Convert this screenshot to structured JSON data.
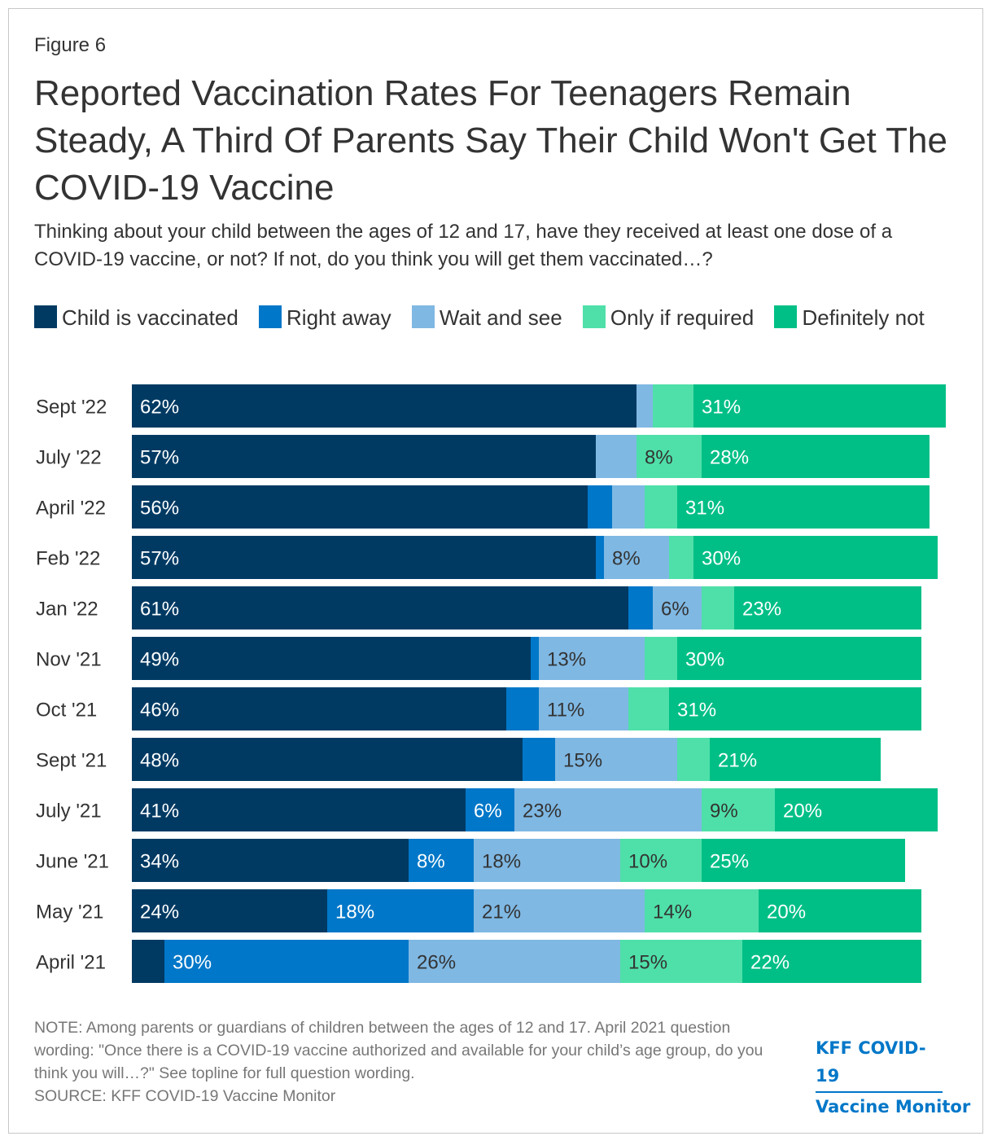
{
  "figure_label": "Figure 6",
  "title": "Reported Vaccination Rates For Teenagers Remain Steady, A Third Of Parents Say Their Child Won't Get The COVID-19 Vaccine",
  "subtitle": "Thinking about your child between the ages of 12 and 17, have they received at least one dose of a COVID-19 vaccine, or not? If not, do you think you will get them vaccinated…?",
  "note": "NOTE: Among parents or guardians of children between the ages of 12 and 17. April 2021 question wording: \"Once there is a COVID-19 vaccine authorized and available for your child’s age group, do you think you will…?\" See topline for full question wording.",
  "source": "SOURCE: KFF COVID-19 Vaccine Monitor",
  "logo": {
    "line1": "KFF COVID-19",
    "line2": "Vaccine Monitor"
  },
  "colors": {
    "vaccinated": "#003a63",
    "right_away": "#0077c8",
    "wait_and_see": "#7fb8e3",
    "only_if_required": "#4fe0a9",
    "definitely_not": "#00bf86",
    "border": "#c8c8c8",
    "logo": "#0077c8"
  },
  "legend": [
    {
      "label": "Child is vaccinated",
      "color": "#003a63"
    },
    {
      "label": "Right away",
      "color": "#0077c8"
    },
    {
      "label": "Wait and see",
      "color": "#7fb8e3"
    },
    {
      "label": "Only if required",
      "color": "#4fe0a9"
    },
    {
      "label": "Definitely not",
      "color": "#00bf86"
    }
  ],
  "chart_data": {
    "type": "bar",
    "orientation": "horizontal",
    "stacked": true,
    "xlim": [
      0,
      100
    ],
    "categories": [
      "Sept '22",
      "July '22",
      "April '22",
      "Feb '22",
      "Jan '22",
      "Nov '21",
      "Oct '21",
      "Sept '21",
      "July '21",
      "June '21",
      "May '21",
      "April '21"
    ],
    "series": [
      {
        "name": "Child is vaccinated",
        "values": [
          62,
          57,
          56,
          57,
          61,
          49,
          46,
          48,
          41,
          34,
          24,
          4
        ],
        "labels": [
          "62%",
          "57%",
          "56%",
          "57%",
          "61%",
          "49%",
          "46%",
          "48%",
          "41%",
          "34%",
          "24%",
          ""
        ]
      },
      {
        "name": "Right away",
        "values": [
          0,
          0,
          3,
          1,
          3,
          1,
          4,
          4,
          6,
          8,
          18,
          30
        ],
        "labels": [
          "",
          "",
          "",
          "",
          "",
          "",
          "",
          "",
          "6%",
          "8%",
          "18%",
          "30%"
        ]
      },
      {
        "name": "Wait and see",
        "values": [
          2,
          5,
          4,
          8,
          6,
          13,
          11,
          15,
          23,
          18,
          21,
          26
        ],
        "labels": [
          "",
          "",
          "",
          "8%",
          "6%",
          "13%",
          "11%",
          "15%",
          "23%",
          "18%",
          "21%",
          "26%"
        ]
      },
      {
        "name": "Only if required",
        "values": [
          5,
          8,
          4,
          3,
          4,
          4,
          5,
          4,
          9,
          10,
          14,
          15
        ],
        "labels": [
          "",
          "8%",
          "",
          "",
          "",
          "",
          "",
          "",
          "9%",
          "10%",
          "14%",
          "15%"
        ]
      },
      {
        "name": "Definitely not",
        "values": [
          31,
          28,
          31,
          30,
          23,
          30,
          31,
          21,
          20,
          25,
          20,
          22
        ],
        "labels": [
          "31%",
          "28%",
          "31%",
          "30%",
          "23%",
          "30%",
          "31%",
          "21%",
          "20%",
          "25%",
          "20%",
          "22%"
        ]
      }
    ]
  }
}
